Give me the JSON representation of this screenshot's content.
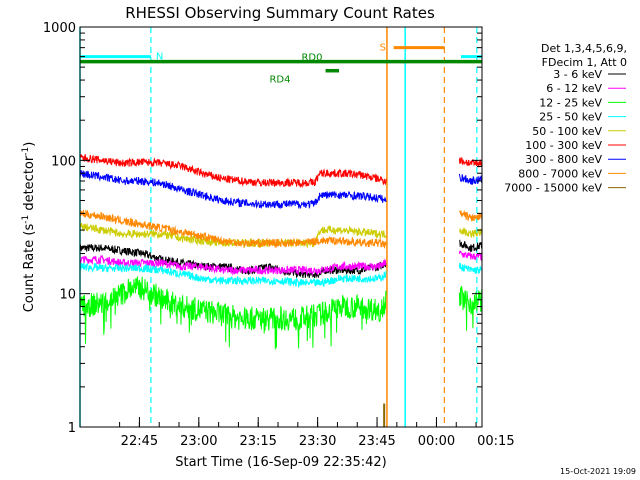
{
  "chart_data": {
    "type": "line",
    "title": "RHESSI Observing Summary Count Rates",
    "xlabel": "Start Time (16-Sep-09 22:35:42)",
    "ylabel_main": "Count Rate (s",
    "ylabel_sup1": "-1",
    "ylabel_mid": " detector",
    "ylabel_sup2": "-1",
    "ylabel_end": ")",
    "yscale": "log",
    "ylim": [
      1,
      1000
    ],
    "xlim_min": [
      -5.7,
      95.8
    ],
    "x_ticks": [
      {
        "label": "22:45",
        "min": 9.3
      },
      {
        "label": "23:00",
        "min": 24.3
      },
      {
        "label": "23:15",
        "min": 39.3
      },
      {
        "label": "23:30",
        "min": 54.3
      },
      {
        "label": "23:45",
        "min": 69.3
      },
      {
        "label": "00:00",
        "min": 84.3
      },
      {
        "label": "00:15",
        "min": 99.3
      }
    ],
    "y_ticks": [
      {
        "label": "1",
        "v": 1
      },
      {
        "label": "10",
        "v": 10
      },
      {
        "label": "100",
        "v": 100
      },
      {
        "label": "1000",
        "v": 1000
      }
    ],
    "legend_header": [
      "Det 1,3,4,5,6,9,",
      "FDecim 1, Att 0"
    ],
    "legend_position": "right",
    "gaps_min": [
      [
        71.7,
        90.1
      ]
    ],
    "series": [
      {
        "name": "3 - 6 keV",
        "color": "#000000",
        "x": [
          -5.7,
          0,
          5,
          10,
          15,
          20,
          25,
          30,
          35,
          38,
          42,
          45,
          50,
          55,
          56,
          57,
          60,
          65,
          70,
          71.5,
          90.2,
          93,
          95.8
        ],
        "y": [
          22,
          22,
          21,
          20,
          18,
          17,
          16,
          16,
          15,
          15,
          16,
          15,
          14,
          14,
          15,
          15,
          15,
          15,
          16,
          17,
          24,
          22,
          23
        ]
      },
      {
        "name": "6 - 12 keV",
        "color": "#ff00ff",
        "x": [
          -5.7,
          0,
          5,
          10,
          15,
          20,
          25,
          30,
          35,
          40,
          45,
          50,
          55,
          60,
          65,
          70,
          71.5,
          90.2,
          93,
          95.8
        ],
        "y": [
          18,
          18,
          17,
          17,
          17,
          16,
          16,
          15,
          15,
          15,
          15,
          15,
          15,
          16,
          16,
          16,
          17,
          20,
          19,
          19
        ]
      },
      {
        "name": "12 - 25 keV",
        "color": "#00ff00",
        "x": [
          -5.7,
          0,
          5,
          7,
          10,
          13,
          15,
          20,
          25,
          30,
          35,
          40,
          45,
          50,
          55,
          60,
          65,
          70,
          71.5,
          90.2,
          93,
          95.8
        ],
        "y": [
          8,
          8.5,
          10,
          11,
          11,
          10,
          9,
          8,
          7.5,
          7,
          6.5,
          6.5,
          6.5,
          6.5,
          7,
          8,
          8,
          7.5,
          9,
          9.5,
          8.5,
          9
        ]
      },
      {
        "name": "25 - 50 keV",
        "color": "#00ffff",
        "x": [
          -5.7,
          0,
          5,
          10,
          15,
          20,
          25,
          30,
          35,
          40,
          45,
          50,
          55,
          60,
          65,
          70,
          71.5,
          90.2,
          93,
          95.8
        ],
        "y": [
          16,
          15.5,
          15.5,
          15.5,
          15,
          14,
          13,
          12.5,
          12.5,
          12.5,
          12.5,
          12,
          12,
          13,
          13,
          13,
          14,
          16,
          15,
          15
        ]
      },
      {
        "name": "50 - 100 keV",
        "color": "#cccc00",
        "x": [
          -5.7,
          0,
          5,
          10,
          15,
          20,
          25,
          30,
          35,
          40,
          45,
          50,
          53.5,
          55,
          60,
          65,
          70,
          71.5,
          90.2,
          93,
          95.8
        ],
        "y": [
          32,
          30,
          28,
          28,
          28,
          26,
          25,
          24,
          24,
          24,
          24,
          24,
          24,
          30,
          30,
          29,
          28,
          28,
          30,
          28,
          29
        ]
      },
      {
        "name": "100 - 300 keV",
        "color": "#ff0000",
        "x": [
          -5.7,
          0,
          5,
          10,
          15,
          20,
          25,
          30,
          35,
          40,
          45,
          50,
          53.5,
          55,
          60,
          65,
          70,
          71.5,
          90.2,
          93,
          95.8
        ],
        "y": [
          105,
          100,
          95,
          97,
          95,
          90,
          80,
          73,
          70,
          68,
          68,
          68,
          68,
          80,
          80,
          78,
          72,
          70,
          100,
          95,
          95
        ]
      },
      {
        "name": "300 - 800 keV",
        "color": "#0000ff",
        "x": [
          -5.7,
          0,
          5,
          10,
          15,
          20,
          25,
          30,
          35,
          40,
          45,
          50,
          53.5,
          55,
          60,
          65,
          70,
          71.5,
          90.2,
          93,
          95.8
        ],
        "y": [
          80,
          75,
          70,
          70,
          67,
          60,
          55,
          50,
          48,
          47,
          47,
          47,
          47,
          55,
          55,
          54,
          52,
          50,
          75,
          70,
          72
        ]
      },
      {
        "name": "800 - 7000 keV",
        "color": "#ff8800",
        "x": [
          -5.7,
          0,
          5,
          10,
          15,
          20,
          25,
          30,
          35,
          40,
          45,
          50,
          55,
          60,
          65,
          70,
          71.5,
          90.2,
          93,
          95.8
        ],
        "y": [
          40,
          38,
          35,
          33,
          31,
          29,
          27,
          25,
          24,
          24,
          24,
          24,
          25,
          25,
          24,
          24,
          23,
          40,
          37,
          37
        ]
      },
      {
        "name": "7000 - 15000 keV",
        "color": "#886600",
        "x": [],
        "y": []
      }
    ],
    "annotations": {
      "night_bars": [
        {
          "label": "N",
          "color": "#00ffff",
          "x0": -5.7,
          "x1": 12.2,
          "y": 600
        },
        {
          "label": "",
          "color": "#00ffff",
          "x0": 90.5,
          "x1": 95.8,
          "y": 600
        }
      ],
      "saa_bars": [
        {
          "label": "S",
          "color": "#ff8800",
          "x0": 73.5,
          "x1": 86.3,
          "y": 700
        }
      ],
      "rd_bars": [
        {
          "label": "RD0",
          "color": "#008800",
          "x0": -5.7,
          "x1": 95.8,
          "y": 550
        },
        {
          "label": "RD4",
          "color": "#008800",
          "x0": 56.3,
          "x1": 59.7,
          "y": 470
        }
      ],
      "cyan_solid_lines": [
        -5.7,
        76.4
      ],
      "cyan_dashed_lines": [
        12.2,
        94.5
      ],
      "orange_solid_lines": [
        71.8
      ],
      "orange_dashed_lines": [
        86.3
      ]
    },
    "footer": "15-Oct-2021 19:09"
  }
}
